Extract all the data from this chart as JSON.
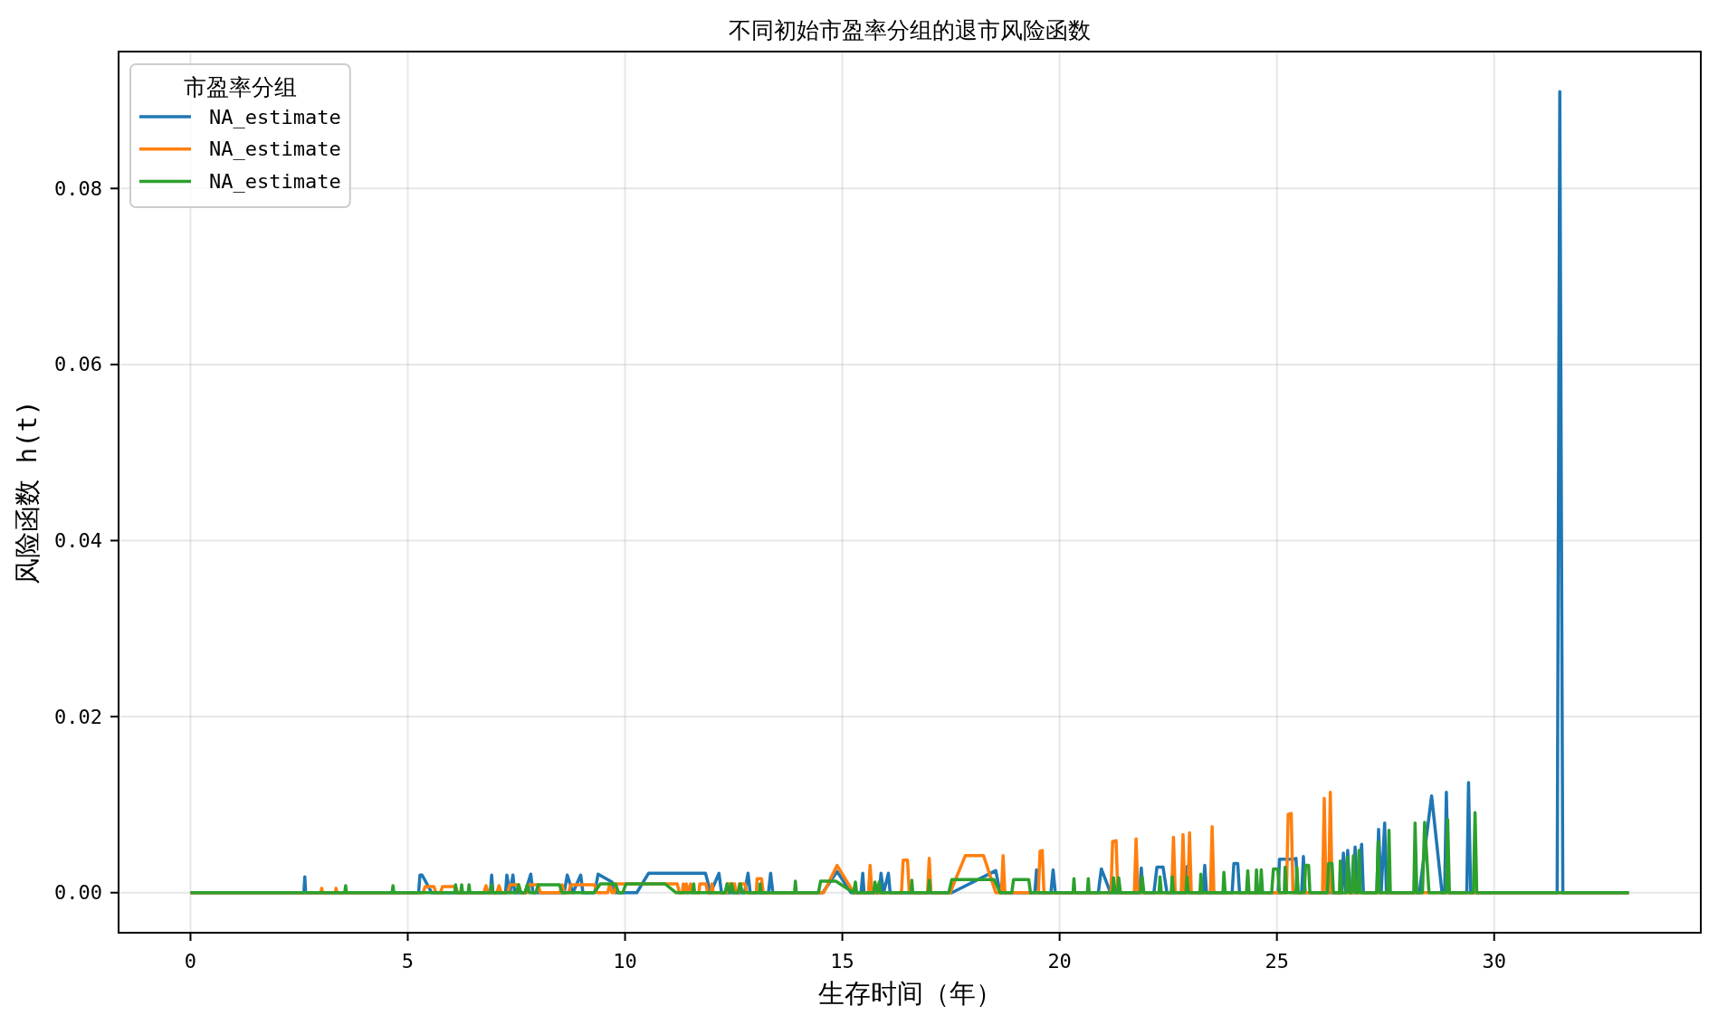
{
  "chart_data": {
    "type": "line",
    "title": "不同初始市盈率分组的退市风险函数",
    "xlabel": "生存时间（年）",
    "ylabel": "风险函数 h(t)",
    "legend_title": "市盈率分组",
    "legend": "top left",
    "grid": true,
    "xlim": [
      -1.655,
      34.755
    ],
    "ylim": [
      -0.00455,
      0.09555
    ],
    "xticks": [
      0,
      5,
      10,
      15,
      20,
      25,
      30
    ],
    "yticks": [
      {
        "value": 0,
        "label": "0.00"
      },
      {
        "value": 0.02,
        "label": "0.02"
      },
      {
        "value": 0.04,
        "label": "0.04"
      },
      {
        "value": 0.06,
        "label": "0.06"
      },
      {
        "value": 0.08,
        "label": "0.08"
      }
    ],
    "series": [
      {
        "name": "NA_estimate",
        "color": "#1f77b4",
        "x": [
          0,
          2.61,
          2.63,
          2.65,
          5.25,
          5.28,
          5.33,
          5.55,
          6.9,
          6.93,
          6.96,
          7.25,
          7.28,
          7.35,
          7.42,
          7.46,
          7.7,
          7.83,
          7.88,
          8.6,
          8.67,
          8.8,
          8.98,
          9.03,
          9.3,
          9.38,
          9.7,
          9.78,
          10.27,
          10.54,
          11.85,
          11.97,
          12.16,
          12.22,
          12.75,
          12.83,
          12.88,
          13.3,
          13.35,
          13.4,
          14.55,
          14.88,
          15.2,
          15.43,
          15.47,
          15.5,
          15.85,
          15.89,
          15.95,
          16.06,
          16.1,
          17.52,
          18.53,
          18.63,
          19.43,
          19.47,
          19.52,
          19.8,
          19.85,
          19.9,
          20.89,
          20.96,
          21.17,
          21.84,
          21.88,
          21.92,
          22.17,
          22.24,
          22.38,
          22.47,
          22.9,
          22.94,
          22.98,
          23.3,
          23.34,
          23.38,
          23.97,
          24.01,
          24.1,
          24.14,
          25.03,
          25.06,
          25.4,
          25.44,
          25.48,
          25.57,
          25.61,
          25.65,
          26.49,
          26.53,
          26.58,
          26.63,
          26.68,
          26.76,
          26.8,
          26.85,
          26.95,
          26.99,
          27.3,
          27.34,
          27.4,
          27.48,
          27.52,
          28.28,
          28.56,
          28.8,
          28.86,
          28.9,
          28.95,
          29.37,
          29.41,
          29.46,
          31.45,
          31.51,
          31.58,
          33.1
        ],
        "values": [
          0,
          0,
          0.0018,
          0,
          0,
          0.002,
          0.002,
          0,
          0,
          0.002,
          0,
          0,
          0.002,
          0,
          0.002,
          0,
          0,
          0.0021,
          0,
          0,
          0.002,
          0,
          0.002,
          0,
          0,
          0.0021,
          0.0012,
          0,
          0,
          0.0022,
          0.0022,
          0,
          0.0022,
          0,
          0,
          0.0022,
          0,
          0,
          0.0022,
          0,
          0,
          0.0024,
          0,
          0,
          0.0022,
          0,
          0,
          0.0022,
          0,
          0.0022,
          0,
          0,
          0.0025,
          0,
          0,
          0.0026,
          0,
          0,
          0.0026,
          0,
          0,
          0.0027,
          0,
          0,
          0.0028,
          0,
          0,
          0.0029,
          0.0029,
          0,
          0,
          0.003,
          0,
          0,
          0.0031,
          0,
          0,
          0.0033,
          0.0033,
          0,
          0,
          0.0038,
          0.0038,
          0.0039,
          0,
          0,
          0.0041,
          0,
          0,
          0.0045,
          0,
          0.0048,
          0,
          0,
          0.0052,
          0,
          0.0055,
          0,
          0,
          0.0072,
          0,
          0.0079,
          0,
          0,
          0.011,
          0,
          0,
          0.0114,
          0,
          0,
          0.0125,
          0,
          0,
          0.091,
          0,
          0
        ]
      },
      {
        "name": "NA_estimate",
        "color": "#ff7f0e",
        "x": [
          0,
          3.0,
          3.02,
          3.04,
          3.33,
          3.35,
          3.37,
          5.35,
          5.4,
          5.6,
          5.65,
          5.75,
          5.8,
          6.1,
          6.15,
          6.75,
          6.8,
          6.85,
          7.05,
          7.1,
          7.15,
          7.3,
          7.35,
          7.55,
          7.6,
          7.75,
          7.8,
          8.0,
          8.05,
          8.5,
          8.55,
          8.6,
          8.7,
          8.75,
          9.3,
          9.35,
          9.6,
          9.65,
          9.7,
          9.75,
          9.8,
          11.2,
          11.25,
          11.32,
          11.34,
          11.37,
          11.41,
          11.44,
          11.51,
          11.54,
          11.7,
          11.72,
          11.86,
          11.9,
          11.98,
          12.0,
          12.03,
          12.33,
          12.35,
          12.52,
          12.55,
          12.61,
          12.63,
          12.76,
          12.8,
          13.02,
          13.04,
          13.14,
          13.18,
          14.57,
          14.88,
          15.26,
          15.6,
          15.64,
          15.68,
          16.36,
          16.4,
          16.5,
          16.54,
          16.96,
          17.0,
          17.04,
          17.48,
          17.83,
          18.25,
          18.53,
          18.66,
          18.7,
          18.74,
          19.51,
          19.55,
          19.6,
          19.64,
          21.18,
          21.22,
          21.3,
          21.34,
          21.72,
          21.76,
          21.8,
          22.58,
          22.62,
          22.66,
          22.8,
          22.84,
          22.88,
          22.95,
          22.99,
          23.03,
          23.47,
          23.51,
          23.55,
          25.22,
          25.26,
          25.33,
          25.37,
          26.05,
          26.09,
          26.13,
          26.19,
          26.23,
          26.27,
          33.1
        ],
        "values": [
          0,
          0,
          0.0005,
          0,
          0,
          0.0005,
          0,
          0,
          0.0007,
          0.0007,
          0,
          0,
          0.0007,
          0.0007,
          0,
          0,
          0.0008,
          0,
          0,
          0.0008,
          0,
          0,
          0.0009,
          0.0009,
          0,
          0,
          0.0009,
          0.0009,
          0,
          0,
          0.0009,
          0,
          0,
          0.0009,
          0.0009,
          0,
          0,
          0.001,
          0,
          0,
          0.001,
          0.001,
          0,
          0,
          0.001,
          0,
          0.001,
          0,
          0.001,
          0,
          0,
          0.001,
          0.001,
          0,
          0,
          0.001,
          0,
          0,
          0.001,
          0.001,
          0,
          0,
          0.001,
          0.001,
          0,
          0,
          0.0016,
          0.0016,
          0,
          0,
          0.0031,
          0,
          0,
          0.0031,
          0,
          0,
          0.0037,
          0.0037,
          0,
          0,
          0.0039,
          0,
          0,
          0.0042,
          0.0042,
          0,
          0,
          0.0042,
          0,
          0,
          0.0047,
          0.0048,
          0,
          0,
          0.0058,
          0.0059,
          0,
          0,
          0.0061,
          0,
          0,
          0.0063,
          0,
          0,
          0.0066,
          0,
          0,
          0.0068,
          0,
          0,
          0.0075,
          0,
          0,
          0.0089,
          0.009,
          0,
          0,
          0.0107,
          0,
          0,
          0.0114,
          0,
          0
        ]
      },
      {
        "name": "NA_estimate",
        "color": "#2ca02c",
        "x": [
          0,
          3.55,
          3.57,
          3.59,
          4.64,
          4.66,
          4.68,
          6.08,
          6.1,
          6.12,
          6.22,
          6.24,
          6.26,
          6.39,
          6.41,
          6.43,
          6.91,
          6.93,
          6.95,
          7.5,
          7.55,
          7.6,
          7.7,
          7.75,
          7.8,
          7.95,
          8.0,
          8.11,
          8.49,
          8.55,
          9.29,
          9.43,
          9.78,
          9.85,
          9.95,
          10.02,
          10.92,
          11.17,
          11.56,
          11.58,
          11.6,
          12.3,
          12.35,
          12.4,
          12.45,
          12.5,
          12.6,
          12.65,
          12.7,
          13.09,
          13.11,
          13.13,
          13.9,
          13.92,
          13.94,
          14.45,
          14.5,
          14.85,
          15.26,
          15.3,
          15.33,
          15.72,
          15.75,
          15.8,
          15.85,
          15.88,
          16.58,
          16.6,
          16.62,
          16.98,
          17.0,
          17.02,
          17.45,
          17.52,
          18.49,
          18.63,
          18.9,
          18.94,
          19.29,
          19.33,
          20.31,
          20.33,
          20.35,
          20.64,
          20.66,
          20.68,
          21.22,
          21.24,
          21.28,
          21.34,
          21.36,
          21.4,
          21.86,
          21.9,
          21.94,
          22.29,
          22.31,
          22.34,
          22.57,
          22.59,
          22.62,
          22.91,
          22.93,
          22.96,
          23.23,
          23.25,
          23.28,
          23.76,
          23.78,
          23.81,
          24.3,
          24.33,
          24.36,
          24.51,
          24.53,
          24.56,
          24.62,
          24.64,
          24.67,
          24.88,
          24.92,
          25.02,
          25.06,
          25.17,
          25.19,
          25.22,
          25.44,
          25.46,
          25.49,
          25.63,
          25.66,
          25.73,
          25.76,
          26.16,
          26.19,
          26.27,
          26.3,
          26.44,
          26.46,
          26.49,
          26.6,
          26.62,
          26.66,
          26.72,
          26.76,
          26.8,
          26.86,
          26.89,
          26.92,
          27.3,
          27.33,
          27.36,
          27.55,
          27.58,
          27.61,
          28.15,
          28.18,
          28.22,
          28.35,
          28.4,
          28.5,
          28.9,
          28.93,
          28.97,
          29.52,
          29.56,
          29.6,
          33.1
        ],
        "values": [
          0,
          0,
          0.0008,
          0,
          0,
          0.0008,
          0,
          0,
          0.0009,
          0,
          0,
          0.0009,
          0,
          0,
          0.0009,
          0,
          0,
          0.0009,
          0,
          0,
          0.0009,
          0,
          0,
          0.0009,
          0,
          0,
          0.0009,
          0.0009,
          0.0009,
          0,
          0,
          0.001,
          0.001,
          0,
          0,
          0.001,
          0.001,
          0,
          0,
          0.001,
          0,
          0,
          0.001,
          0,
          0.001,
          0,
          0,
          0.001,
          0,
          0,
          0.001,
          0,
          0,
          0.0013,
          0,
          0,
          0.0013,
          0.0013,
          0,
          0.0012,
          0,
          0,
          0.0012,
          0,
          0.0012,
          0,
          0,
          0.0014,
          0,
          0,
          0.0014,
          0,
          0,
          0.0015,
          0.0015,
          0,
          0,
          0.0015,
          0.0015,
          0,
          0,
          0.0016,
          0,
          0,
          0.0016,
          0,
          0,
          0.0017,
          0,
          0,
          0.0017,
          0,
          0,
          0.0018,
          0,
          0,
          0.0018,
          0,
          0,
          0.0018,
          0,
          0,
          0.0018,
          0,
          0,
          0.0021,
          0,
          0,
          0.0023,
          0,
          0,
          0.0025,
          0,
          0,
          0.0026,
          0,
          0,
          0.0026,
          0,
          0,
          0.0027,
          0.0027,
          0,
          0,
          0.0029,
          0,
          0,
          0.0029,
          0,
          0,
          0.0031,
          0.0031,
          0,
          0,
          0.0033,
          0.0033,
          0,
          0,
          0.0036,
          0,
          0,
          0.004,
          0,
          0,
          0.0042,
          0,
          0,
          0.0048,
          0,
          0,
          0.0058,
          0,
          0,
          0.0071,
          0,
          0,
          0.0079,
          0,
          0,
          0.008,
          0,
          0,
          0.0083,
          0,
          0,
          0.0091,
          0,
          0
        ]
      }
    ]
  }
}
